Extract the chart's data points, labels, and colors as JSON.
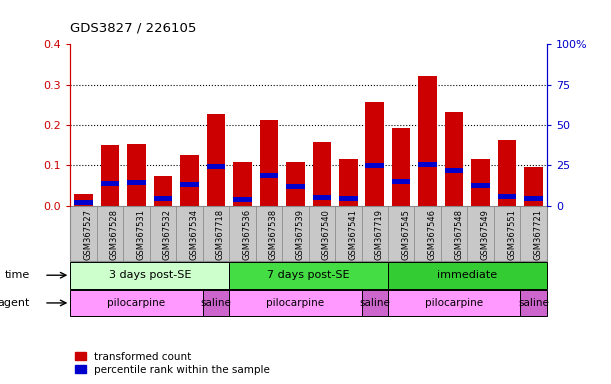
{
  "title": "GDS3827 / 226105",
  "samples": [
    "GSM367527",
    "GSM367528",
    "GSM367531",
    "GSM367532",
    "GSM367534",
    "GSM367718",
    "GSM367536",
    "GSM367538",
    "GSM367539",
    "GSM367540",
    "GSM367541",
    "GSM367719",
    "GSM367545",
    "GSM367546",
    "GSM367548",
    "GSM367549",
    "GSM367551",
    "GSM367721"
  ],
  "red_values": [
    0.03,
    0.15,
    0.152,
    0.073,
    0.127,
    0.228,
    0.109,
    0.213,
    0.109,
    0.158,
    0.115,
    0.256,
    0.192,
    0.322,
    0.232,
    0.115,
    0.163,
    0.096
  ],
  "blue_values": [
    0.008,
    0.055,
    0.057,
    0.018,
    0.052,
    0.097,
    0.015,
    0.076,
    0.048,
    0.02,
    0.018,
    0.1,
    0.06,
    0.103,
    0.088,
    0.05,
    0.023,
    0.018
  ],
  "blue_thickness": 0.012,
  "ylim_left": [
    0,
    0.4
  ],
  "ylim_right": [
    0,
    100
  ],
  "yticks_left": [
    0.0,
    0.1,
    0.2,
    0.3,
    0.4
  ],
  "yticks_right": [
    0,
    25,
    50,
    75,
    100
  ],
  "ytick_labels_right": [
    "0",
    "25",
    "50",
    "75",
    "100%"
  ],
  "left_axis_color": "#cc0000",
  "right_axis_color": "#0000cc",
  "cell_bg_color": "#c8c8c8",
  "cell_border_color": "#888888",
  "time_groups": [
    {
      "label": "3 days post-SE",
      "start": 0,
      "end": 5,
      "color": "#ccffcc"
    },
    {
      "label": "7 days post-SE",
      "start": 6,
      "end": 11,
      "color": "#44dd44"
    },
    {
      "label": "immediate",
      "start": 12,
      "end": 17,
      "color": "#33cc33"
    }
  ],
  "agent_groups": [
    {
      "label": "pilocarpine",
      "start": 0,
      "end": 4,
      "color": "#ff99ff"
    },
    {
      "label": "saline",
      "start": 5,
      "end": 5,
      "color": "#cc66cc"
    },
    {
      "label": "pilocarpine",
      "start": 6,
      "end": 10,
      "color": "#ff99ff"
    },
    {
      "label": "saline",
      "start": 11,
      "end": 11,
      "color": "#cc66cc"
    },
    {
      "label": "pilocarpine",
      "start": 12,
      "end": 16,
      "color": "#ff99ff"
    },
    {
      "label": "saline",
      "start": 17,
      "end": 17,
      "color": "#cc66cc"
    }
  ],
  "legend_red": "transformed count",
  "legend_blue": "percentile rank within the sample",
  "time_label": "time",
  "agent_label": "agent"
}
